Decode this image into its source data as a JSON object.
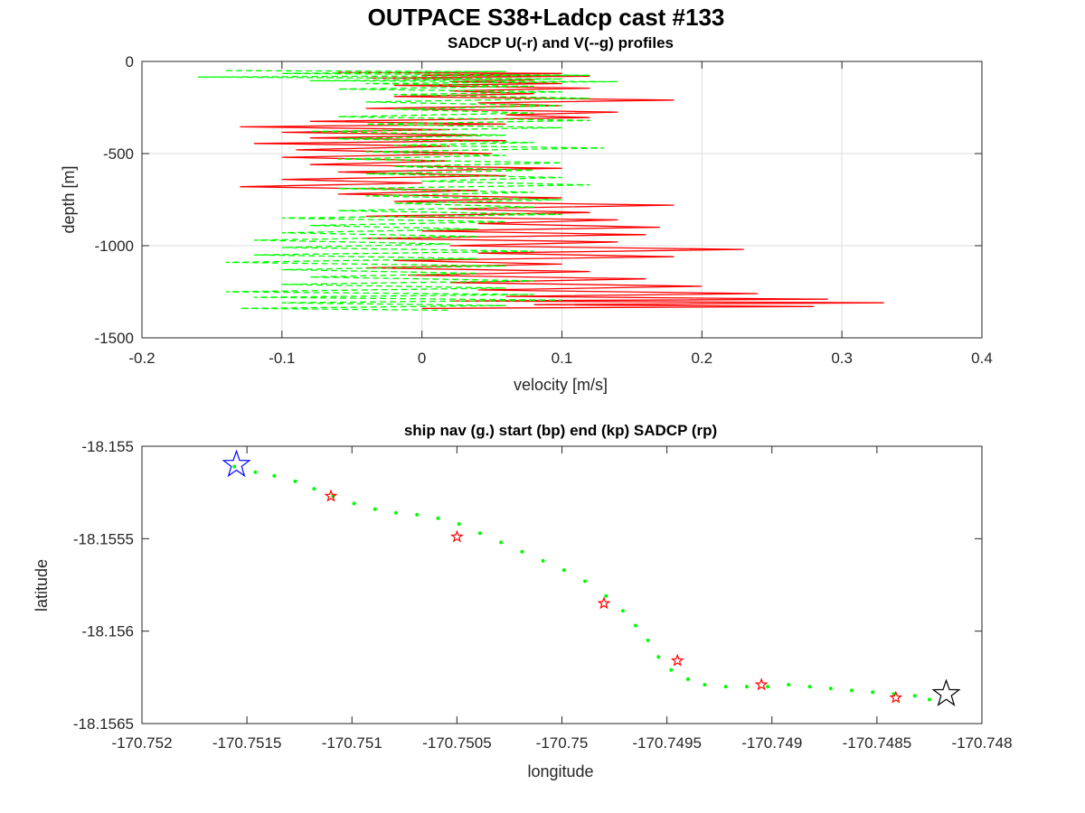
{
  "figure": {
    "title": "OUTPACE S38+Ladcp cast #133"
  },
  "chart_data": [
    {
      "type": "line",
      "title": "SADCP U(-r) and V(--g) profiles",
      "xlabel": "velocity [m/s]",
      "ylabel": "depth [m]",
      "xlim": [
        -0.2,
        0.4
      ],
      "ylim": [
        -1500,
        0
      ],
      "xticks": [
        -0.2,
        -0.1,
        0,
        0.1,
        0.2,
        0.3,
        0.4
      ],
      "xtick_labels": [
        "-0.2",
        "-0.1",
        "0",
        "0.1",
        "0.2",
        "0.3",
        "0.4"
      ],
      "yticks": [
        0,
        -500,
        -1000,
        -1500
      ],
      "ytick_labels": [
        "0",
        "-500",
        "-1000",
        "-1500"
      ],
      "grid": true,
      "series": [
        {
          "color": "#ff0000",
          "style": "solid",
          "points": [
            [
              -0.06,
              -60
            ],
            [
              0.1,
              -65
            ],
            [
              0.0,
              -75
            ],
            [
              0.12,
              -80
            ],
            [
              -0.04,
              -90
            ],
            [
              0.08,
              -100
            ],
            [
              0.02,
              -110
            ],
            [
              0.1,
              -120
            ],
            [
              -0.02,
              -130
            ],
            [
              0.12,
              -145
            ],
            [
              0.02,
              -160
            ],
            [
              0.08,
              -175
            ],
            [
              -0.02,
              -190
            ],
            [
              0.18,
              -210
            ],
            [
              0.04,
              -225
            ],
            [
              0.1,
              -240
            ],
            [
              -0.04,
              -255
            ],
            [
              0.14,
              -275
            ],
            [
              0.06,
              -290
            ],
            [
              0.12,
              -305
            ],
            [
              -0.08,
              -325
            ],
            [
              0.06,
              -340
            ],
            [
              -0.13,
              -355
            ],
            [
              0.02,
              -370
            ],
            [
              -0.1,
              -385
            ],
            [
              0.04,
              -400
            ],
            [
              -0.08,
              -415
            ],
            [
              0.06,
              -430
            ],
            [
              -0.12,
              -445
            ],
            [
              0.02,
              -460
            ],
            [
              -0.09,
              -480
            ],
            [
              0.05,
              -500
            ],
            [
              -0.1,
              -520
            ],
            [
              0.02,
              -540
            ],
            [
              -0.08,
              -560
            ],
            [
              0.1,
              -580
            ],
            [
              -0.06,
              -600
            ],
            [
              0.06,
              -620
            ],
            [
              -0.1,
              -640
            ],
            [
              0.0,
              -660
            ],
            [
              -0.13,
              -680
            ],
            [
              0.04,
              -700
            ],
            [
              -0.06,
              -720
            ],
            [
              0.1,
              -740
            ],
            [
              -0.02,
              -760
            ],
            [
              0.18,
              -780
            ],
            [
              0.02,
              -800
            ],
            [
              0.12,
              -820
            ],
            [
              -0.04,
              -840
            ],
            [
              0.14,
              -860
            ],
            [
              0.04,
              -880
            ],
            [
              0.17,
              -900
            ],
            [
              0.0,
              -920
            ],
            [
              0.16,
              -940
            ],
            [
              -0.04,
              -960
            ],
            [
              0.14,
              -980
            ],
            [
              0.02,
              -1000
            ],
            [
              0.23,
              -1020
            ],
            [
              0.04,
              -1040
            ],
            [
              0.18,
              -1060
            ],
            [
              -0.02,
              -1080
            ],
            [
              0.1,
              -1100
            ],
            [
              -0.04,
              -1120
            ],
            [
              0.12,
              -1140
            ],
            [
              -0.01,
              -1160
            ],
            [
              0.16,
              -1180
            ],
            [
              0.02,
              -1200
            ],
            [
              0.2,
              -1220
            ],
            [
              0.04,
              -1240
            ],
            [
              0.24,
              -1260
            ],
            [
              0.06,
              -1275
            ],
            [
              0.29,
              -1290
            ],
            [
              0.02,
              -1300
            ],
            [
              0.33,
              -1310
            ],
            [
              0.08,
              -1320
            ],
            [
              0.28,
              -1330
            ],
            [
              0.0,
              -1340
            ]
          ]
        },
        {
          "color": "#00ff00",
          "style": "dashed",
          "points": [
            [
              -0.14,
              -50
            ],
            [
              0.06,
              -55
            ],
            [
              -0.1,
              -65
            ],
            [
              0.12,
              -75
            ],
            [
              -0.16,
              -85
            ],
            [
              0.1,
              -95
            ],
            [
              -0.08,
              -105
            ],
            [
              0.14,
              -110
            ],
            [
              -0.04,
              -120
            ],
            [
              0.08,
              -135
            ],
            [
              -0.06,
              -150
            ],
            [
              0.1,
              -165
            ],
            [
              -0.02,
              -180
            ],
            [
              0.12,
              -200
            ],
            [
              -0.04,
              -220
            ],
            [
              0.1,
              -240
            ],
            [
              -0.02,
              -260
            ],
            [
              0.08,
              -280
            ],
            [
              -0.06,
              -300
            ],
            [
              0.12,
              -320
            ],
            [
              -0.04,
              -340
            ],
            [
              0.1,
              -360
            ],
            [
              -0.08,
              -380
            ],
            [
              0.06,
              -400
            ],
            [
              -0.06,
              -420
            ],
            [
              0.08,
              -440
            ],
            [
              -0.02,
              -455
            ],
            [
              0.13,
              -470
            ],
            [
              -0.04,
              -490
            ],
            [
              0.06,
              -510
            ],
            [
              -0.06,
              -530
            ],
            [
              0.1,
              -550
            ],
            [
              -0.02,
              -570
            ],
            [
              0.08,
              -590
            ],
            [
              -0.04,
              -610
            ],
            [
              0.1,
              -630
            ],
            [
              0.0,
              -650
            ],
            [
              0.12,
              -670
            ],
            [
              -0.06,
              -690
            ],
            [
              0.08,
              -710
            ],
            [
              -0.04,
              -730
            ],
            [
              0.1,
              -750
            ],
            [
              -0.02,
              -770
            ],
            [
              0.08,
              -790
            ],
            [
              -0.06,
              -810
            ],
            [
              0.1,
              -830
            ],
            [
              -0.1,
              -850
            ],
            [
              0.06,
              -870
            ],
            [
              -0.08,
              -890
            ],
            [
              0.04,
              -910
            ],
            [
              -0.1,
              -930
            ],
            [
              0.04,
              -950
            ],
            [
              -0.12,
              -970
            ],
            [
              0.02,
              -990
            ],
            [
              -0.1,
              -1010
            ],
            [
              0.08,
              -1030
            ],
            [
              -0.12,
              -1050
            ],
            [
              0.04,
              -1070
            ],
            [
              -0.14,
              -1090
            ],
            [
              0.06,
              -1110
            ],
            [
              -0.1,
              -1130
            ],
            [
              0.04,
              -1150
            ],
            [
              -0.08,
              -1170
            ],
            [
              0.08,
              -1190
            ],
            [
              -0.1,
              -1210
            ],
            [
              0.06,
              -1230
            ],
            [
              -0.14,
              -1250
            ],
            [
              0.08,
              -1265
            ],
            [
              -0.12,
              -1280
            ],
            [
              0.1,
              -1295
            ],
            [
              -0.1,
              -1310
            ],
            [
              0.06,
              -1325
            ],
            [
              -0.13,
              -1340
            ],
            [
              0.02,
              -1350
            ]
          ]
        }
      ]
    },
    {
      "type": "scatter",
      "title": "ship nav (g.) start (bp) end (kp) SADCP (rp)",
      "xlabel": "longitude",
      "ylabel": "latitude",
      "xlim": [
        -170.752,
        -170.748
      ],
      "ylim": [
        -18.1565,
        -18.155
      ],
      "xticks": [
        -170.752,
        -170.7515,
        -170.751,
        -170.7505,
        -170.75,
        -170.7495,
        -170.749,
        -170.7485,
        -170.748
      ],
      "xtick_labels": [
        "-170.752",
        "-170.7515",
        "-170.751",
        "-170.7505",
        "-170.75",
        "-170.7495",
        "-170.749",
        "-170.7485",
        "-170.748"
      ],
      "yticks": [
        -18.155,
        -18.1555,
        -18.156,
        -18.1565
      ],
      "ytick_labels": [
        "-18.155",
        "-18.1555",
        "-18.156",
        "-18.1565"
      ],
      "grid": false,
      "track_color": "#00ff00",
      "track": [
        [
          -170.75156,
          -18.15511
        ],
        [
          -170.75146,
          -18.15514
        ],
        [
          -170.75137,
          -18.15516
        ],
        [
          -170.75127,
          -18.15519
        ],
        [
          -170.75118,
          -18.15523
        ],
        [
          -170.75109,
          -18.15527
        ],
        [
          -170.75099,
          -18.15531
        ],
        [
          -170.75089,
          -18.15534
        ],
        [
          -170.75079,
          -18.15536
        ],
        [
          -170.75069,
          -18.15537
        ],
        [
          -170.75059,
          -18.15539
        ],
        [
          -170.75049,
          -18.15542
        ],
        [
          -170.75039,
          -18.15547
        ],
        [
          -170.75029,
          -18.15552
        ],
        [
          -170.75019,
          -18.15557
        ],
        [
          -170.75009,
          -18.15562
        ],
        [
          -170.74999,
          -18.15567
        ],
        [
          -170.74989,
          -18.15573
        ],
        [
          -170.74979,
          -18.15581
        ],
        [
          -170.74971,
          -18.15589
        ],
        [
          -170.74965,
          -18.15597
        ],
        [
          -170.74959,
          -18.15605
        ],
        [
          -170.74954,
          -18.15614
        ],
        [
          -170.74948,
          -18.15621
        ],
        [
          -170.7494,
          -18.15626
        ],
        [
          -170.74932,
          -18.15629
        ],
        [
          -170.74922,
          -18.1563
        ],
        [
          -170.74912,
          -18.1563
        ],
        [
          -170.74902,
          -18.1563
        ],
        [
          -170.74892,
          -18.15629
        ],
        [
          -170.74882,
          -18.1563
        ],
        [
          -170.74872,
          -18.15631
        ],
        [
          -170.74862,
          -18.15632
        ],
        [
          -170.74852,
          -18.15633
        ],
        [
          -170.74842,
          -18.15634
        ],
        [
          -170.74832,
          -18.15635
        ],
        [
          -170.74825,
          -18.15637
        ]
      ],
      "start_marker": {
        "lon": -170.75155,
        "lat": -18.1551,
        "color": "#0000ff"
      },
      "end_marker": {
        "lon": -170.74817,
        "lat": -18.15634,
        "color": "#000000"
      },
      "sadcp_color": "#ff0000",
      "sadcp_points": [
        [
          -170.7511,
          -18.15527
        ],
        [
          -170.7505,
          -18.15549
        ],
        [
          -170.7498,
          -18.15585
        ],
        [
          -170.74945,
          -18.15616
        ],
        [
          -170.74905,
          -18.15629
        ],
        [
          -170.74841,
          -18.15636
        ]
      ]
    }
  ]
}
